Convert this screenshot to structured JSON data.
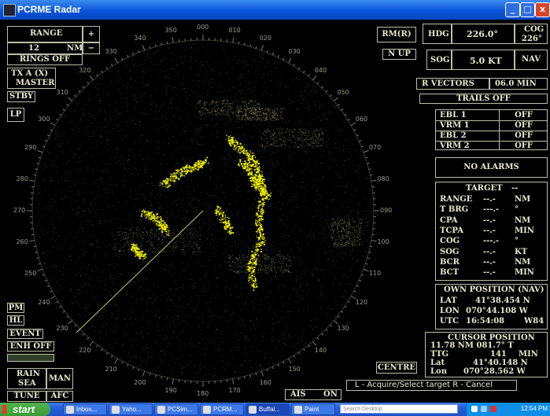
{
  "window": {
    "title": "PCRME Radar",
    "min_label": "_",
    "max_label": "□",
    "close_label": "x"
  },
  "colors": {
    "echo": "#f0f000",
    "panel_text": "#e8e8d0",
    "border": "#bdbda8"
  },
  "range": {
    "label": "RANGE",
    "plus": "+",
    "minus": "−",
    "value": "12",
    "unit": "NM",
    "rings": "RINGS OFF"
  },
  "tx": {
    "label": "TX A (X)",
    "mode": "MASTER"
  },
  "left_buttons": {
    "stby": "STBY",
    "lp": "LP",
    "pm": "PM",
    "hl": "HL",
    "event": "EVENT",
    "enh": "ENH OFF",
    "rain": "RAIN",
    "sea": "SEA",
    "man": "MAN",
    "tune": "TUNE",
    "afc": "AFC"
  },
  "motion": {
    "mode": "RM(R)",
    "orientation": "N UP"
  },
  "hdg": {
    "label": "HDG",
    "value": "226.0°"
  },
  "cog": {
    "label": "COG",
    "value": "226°"
  },
  "sog": {
    "label": "SOG",
    "value": "5.0 KT",
    "source": "NAV"
  },
  "vectors": {
    "label": "R VECTORS",
    "value": "06.0 MIN",
    "trails": "TRAILS OFF"
  },
  "ebl_vrm": [
    {
      "label": "EBL 1",
      "value": "OFF"
    },
    {
      "label": "VRM 1",
      "value": "OFF"
    },
    {
      "label": "EBL 2",
      "value": "OFF"
    },
    {
      "label": "VRM 2",
      "value": "OFF"
    }
  ],
  "alarms": "NO ALARMS",
  "target": {
    "title": "TARGET",
    "title_value": "--",
    "rows": [
      {
        "label": "RANGE",
        "value": "--.-",
        "unit": "NM"
      },
      {
        "label": "T BRG",
        "value": "---.-",
        "unit": "°"
      },
      {
        "label": "CPA",
        "value": "--.-",
        "unit": "NM"
      },
      {
        "label": "TCPA",
        "value": "--.-",
        "unit": "MIN"
      },
      {
        "label": "COG",
        "value": "---.-",
        "unit": "°"
      },
      {
        "label": "SOG",
        "value": "--.-",
        "unit": "KT"
      },
      {
        "label": "BCR",
        "value": "--.-",
        "unit": "NM"
      },
      {
        "label": "BCT",
        "value": "--.-",
        "unit": "MIN"
      }
    ]
  },
  "own_position": {
    "title": "OWN POSITION (NAV)",
    "lat_label": "LAT",
    "lat": "41°38.454 N",
    "lon_label": "LON",
    "lon": "070°44.108 W",
    "utc_label": "UTC",
    "utc": "16:54:08",
    "datum": "W84"
  },
  "cursor_position": {
    "title": "CURSOR POSITION",
    "line1": "11.78 NM 081.7° T",
    "ttg_label": "TTG",
    "ttg": "141",
    "ttg_unit": "MIN",
    "lat_label": "Lat",
    "lat": "41°40.148 N",
    "lon_label": "Lon",
    "lon": "070°28.562 W"
  },
  "centre": "CENTRE",
  "ais": {
    "label": "AIS",
    "value": "ON"
  },
  "status": "L - Acquire/Select target  R - Cancel",
  "bearings": [
    "000",
    "010",
    "020",
    "030",
    "040",
    "050",
    "060",
    "070",
    "080",
    "090",
    "100",
    "110",
    "120",
    "130",
    "140",
    "150",
    "160",
    "170",
    "180",
    "190",
    "200",
    "210",
    "220",
    "230",
    "240",
    "250",
    "260",
    "270",
    "280",
    "290",
    "300",
    "310",
    "320",
    "330",
    "340",
    "350"
  ],
  "taskbar": {
    "start": "start",
    "tasks": [
      "Inbox...",
      "Yaho...",
      "PCSim...",
      "PCRM...",
      "Buffal...",
      "Paint"
    ],
    "search": "Search Desktop",
    "clock": "12:54 PM"
  }
}
